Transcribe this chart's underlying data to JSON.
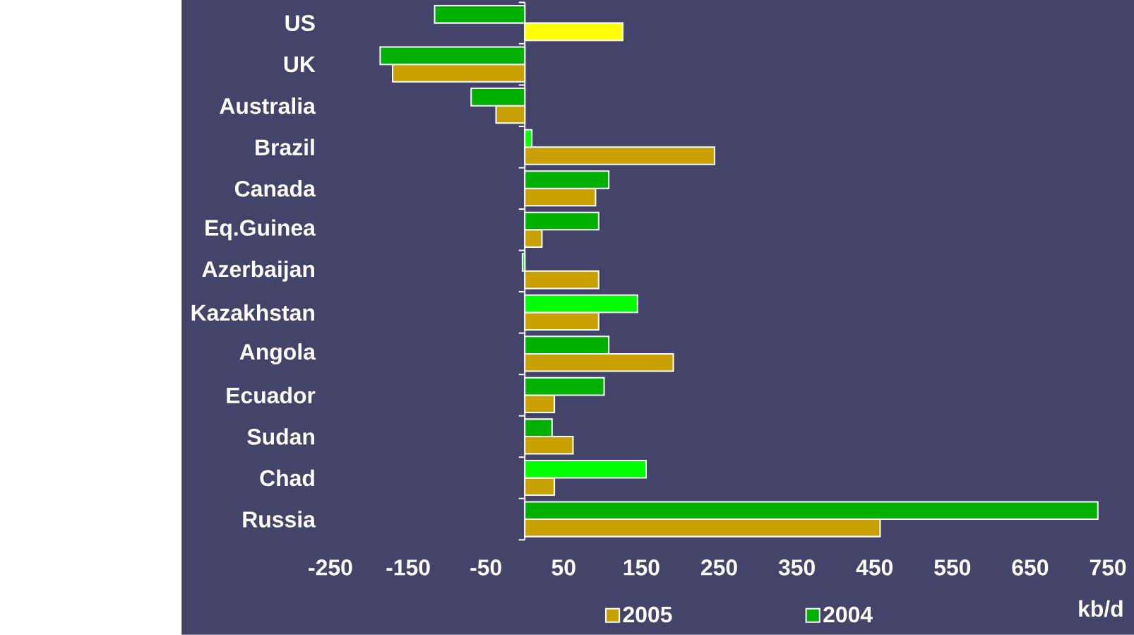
{
  "chart_data": {
    "type": "bar",
    "orientation": "horizontal",
    "xlabel": "kb/d",
    "categories": [
      "US",
      "UK",
      "Australia",
      "Brazil",
      "Canada",
      "Eq.Guinea",
      "Azerbaijan",
      "Kazakhstan",
      "Angola",
      "Ecuador",
      "Sudan",
      "Chad",
      "Russia"
    ],
    "series": [
      {
        "name": "2005",
        "color": "#c8a000",
        "colors": [
          "#ffff00",
          "#c8a000",
          "#c8a000",
          "#c8a000",
          "#c8a000",
          "#c8a000",
          "#c8a000",
          "#c8a000",
          "#c8a000",
          "#c8a000",
          "#c8a000",
          "#c8a000",
          "#c8a000"
        ],
        "values": [
          126,
          -170,
          -37,
          244,
          91,
          22,
          95,
          95,
          191,
          38,
          62,
          38,
          457
        ]
      },
      {
        "name": "2004",
        "color": "#00b000",
        "colors": [
          "#00b000",
          "#00b000",
          "#00b000",
          "#00ff00",
          "#00b000",
          "#00b000",
          "#00ff00",
          "#00ff00",
          "#00b000",
          "#00b000",
          "#00b000",
          "#00ff00",
          "#00b000"
        ],
        "values": [
          -116,
          -186,
          -69,
          9,
          108,
          95,
          -3,
          145,
          108,
          102,
          35,
          156,
          737
        ]
      }
    ],
    "xlim": [
      -250,
      750
    ],
    "xticks": [
      -250,
      -150,
      -50,
      50,
      150,
      250,
      350,
      450,
      550,
      650,
      750
    ],
    "legend": "bottom"
  }
}
